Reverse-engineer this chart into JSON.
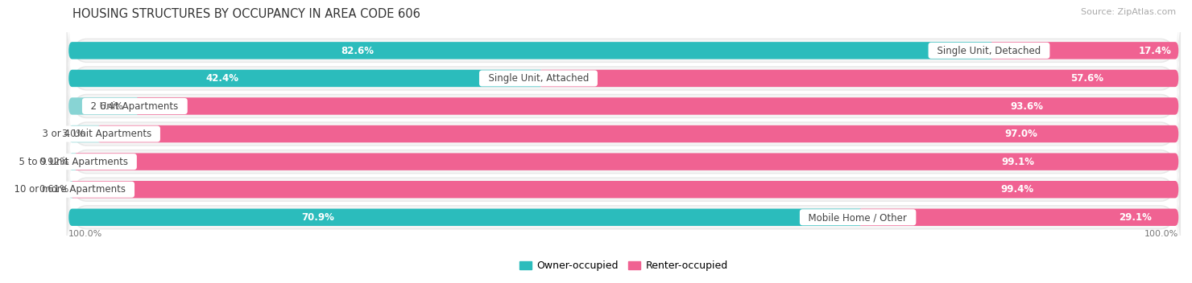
{
  "title": "HOUSING STRUCTURES BY OCCUPANCY IN AREA CODE 606",
  "source": "Source: ZipAtlas.com",
  "categories": [
    "Single Unit, Detached",
    "Single Unit, Attached",
    "2 Unit Apartments",
    "3 or 4 Unit Apartments",
    "5 to 9 Unit Apartments",
    "10 or more Apartments",
    "Mobile Home / Other"
  ],
  "owner_pct": [
    82.6,
    42.4,
    6.4,
    3.0,
    0.92,
    0.61,
    70.9
  ],
  "renter_pct": [
    17.4,
    57.6,
    93.6,
    97.0,
    99.1,
    99.4,
    29.1
  ],
  "owner_color": "#2bbcbc",
  "renter_color": "#f06292",
  "renter_color_large": "#f06292",
  "renter_color_small": "#f8aac8",
  "owner_color_small": "#88d4d4",
  "row_bg_color": "#e8e8e8",
  "row_bg_white": "#f8f8f8",
  "title_fontsize": 10.5,
  "source_fontsize": 8,
  "label_fontsize": 8.5,
  "pct_fontsize": 8.5,
  "legend_fontsize": 9,
  "bar_height": 0.62,
  "row_padding": 0.12
}
